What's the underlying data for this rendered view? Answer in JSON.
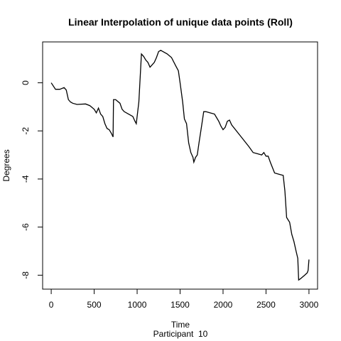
{
  "chart_data": {
    "type": "line",
    "title": "Linear Interpolation of unique data points (Roll)",
    "x_label": "Time",
    "y_label": "Degrees",
    "subtitle": "Participant  10",
    "xlim": [
      -100,
      3100
    ],
    "ylim": [
      -8.58,
      1.7
    ],
    "xticks": [
      0,
      500,
      1000,
      1500,
      2000,
      2500,
      3000
    ],
    "yticks": [
      -8,
      -6,
      -4,
      -2,
      0
    ],
    "grid": false,
    "series": [
      {
        "name": "Roll",
        "color": "#000000",
        "x": [
          0,
          50,
          100,
          150,
          175,
          200,
          225,
          250,
          300,
          400,
          450,
          500,
          525,
          550,
          575,
          600,
          625,
          650,
          675,
          700,
          720,
          725,
          750,
          800,
          825,
          850,
          900,
          950,
          975,
          990,
          1020,
          1050,
          1075,
          1100,
          1125,
          1150,
          1175,
          1200,
          1225,
          1250,
          1275,
          1300,
          1350,
          1400,
          1450,
          1480,
          1500,
          1530,
          1550,
          1575,
          1600,
          1625,
          1650,
          1660,
          1680,
          1700,
          1720,
          1750,
          1775,
          1800,
          1850,
          1900,
          1925,
          1950,
          1975,
          2000,
          2025,
          2050,
          2075,
          2100,
          2200,
          2300,
          2350,
          2400,
          2450,
          2475,
          2500,
          2525,
          2550,
          2600,
          2650,
          2700,
          2720,
          2740,
          2775,
          2800,
          2825,
          2850,
          2870,
          2880,
          2900,
          2950,
          2980,
          2990,
          3000
        ],
        "values": [
          0,
          -0.27,
          -0.27,
          -0.2,
          -0.3,
          -0.7,
          -0.8,
          -0.85,
          -0.9,
          -0.88,
          -0.95,
          -1.1,
          -1.25,
          -1.05,
          -1.3,
          -1.4,
          -1.7,
          -1.9,
          -1.95,
          -2.1,
          -2.25,
          -0.7,
          -0.7,
          -0.85,
          -1.1,
          -1.2,
          -1.3,
          -1.4,
          -1.6,
          -1.7,
          -0.8,
          1.2,
          1.1,
          0.95,
          0.85,
          0.65,
          0.75,
          0.85,
          1.05,
          1.3,
          1.35,
          1.3,
          1.2,
          1.05,
          0.7,
          0.5,
          0.0,
          -0.8,
          -1.5,
          -1.7,
          -2.5,
          -2.9,
          -3.1,
          -3.3,
          -3.1,
          -3.0,
          -2.5,
          -1.8,
          -1.2,
          -1.2,
          -1.25,
          -1.3,
          -1.45,
          -1.6,
          -1.8,
          -1.95,
          -1.85,
          -1.6,
          -1.55,
          -1.75,
          -2.2,
          -2.65,
          -2.9,
          -2.95,
          -3.0,
          -2.9,
          -3.05,
          -3.05,
          -3.3,
          -3.75,
          -3.8,
          -3.85,
          -4.5,
          -5.6,
          -5.8,
          -6.3,
          -6.6,
          -7.0,
          -7.3,
          -8.2,
          -8.15,
          -8.0,
          -7.9,
          -7.8,
          -7.35
        ]
      }
    ]
  }
}
